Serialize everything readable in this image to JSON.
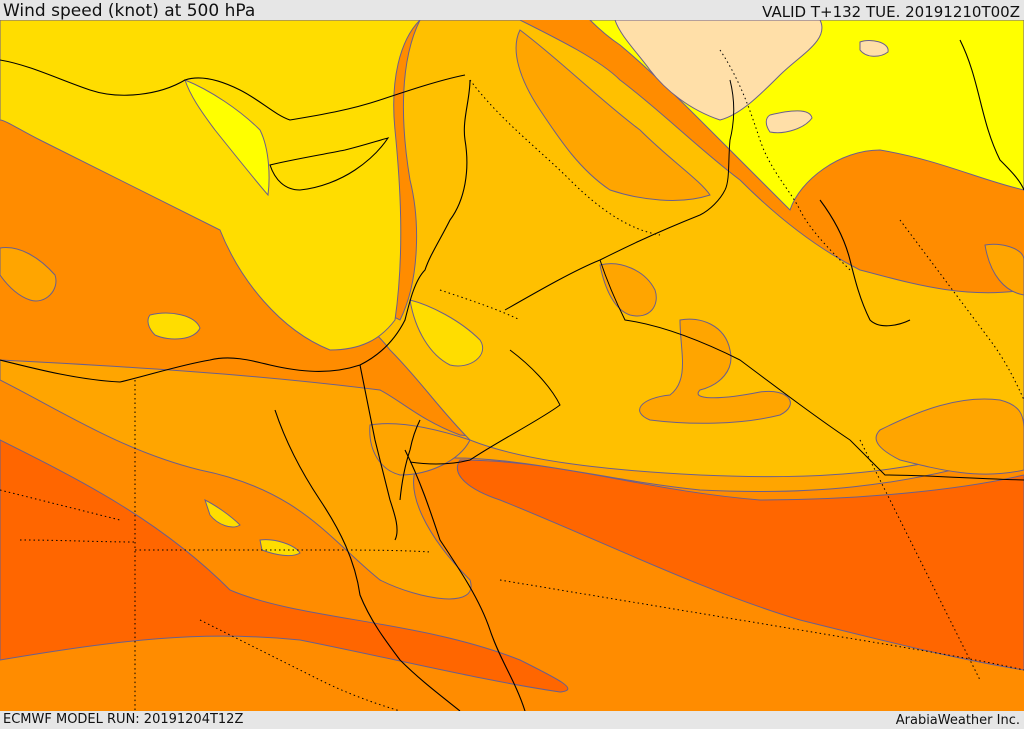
{
  "header": {
    "title": "Wind speed (knot) at 500 hPa",
    "valid": "VALID T+132 TUE. 20191210T00Z"
  },
  "footer": {
    "model_run": "ECMWF MODEL RUN: 20191204T12Z",
    "provider": "ArabiaWeather Inc."
  },
  "map": {
    "variable": "wind speed",
    "units": "knot",
    "level": "500 hPa",
    "colors": {
      "band_1": "#ffdfa8",
      "band_2": "#ffff00",
      "band_3": "#ffdd00",
      "band_4": "#ffc000",
      "band_5": "#ffa500",
      "band_6": "#ff8c00",
      "band_7": "#ff6600",
      "contour": "#6b5f8c",
      "coastline": "#000000",
      "border": "#000000"
    }
  }
}
